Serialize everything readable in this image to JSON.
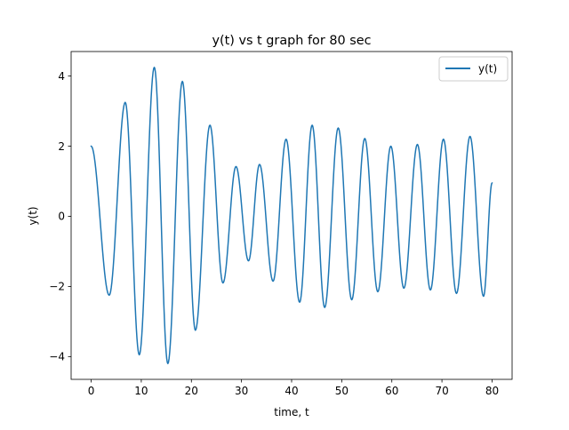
{
  "chart_data": {
    "type": "line",
    "title": "y(t) vs t graph for 80 sec",
    "xlabel": "time, t",
    "ylabel": "y(t)",
    "xlim": [
      -4,
      84
    ],
    "ylim": [
      -4.65,
      4.7
    ],
    "xticks": [
      0,
      10,
      20,
      30,
      40,
      50,
      60,
      70,
      80
    ],
    "yticks": [
      -4,
      -2,
      0,
      2,
      4
    ],
    "legend": {
      "position": "top-right",
      "entries": [
        "y(t)"
      ]
    },
    "grid": false,
    "series": [
      {
        "name": "y(t)",
        "color": "#1f77b4",
        "x": [
          0,
          3.6,
          6.8,
          9.6,
          12.6,
          15.3,
          18.2,
          20.8,
          23.7,
          26.3,
          28.9,
          31.4,
          33.6,
          36.3,
          38.9,
          41.6,
          44.1,
          46.6,
          49.3,
          52.0,
          54.6,
          57.2,
          59.8,
          62.4,
          65.1,
          67.7,
          70.3,
          72.9,
          75.6,
          78.3,
          80
        ],
        "y": [
          2.0,
          -2.25,
          3.25,
          -3.95,
          4.25,
          -4.2,
          3.85,
          -3.25,
          2.6,
          -1.9,
          1.42,
          -1.27,
          1.48,
          -1.85,
          2.2,
          -2.45,
          2.6,
          -2.6,
          2.52,
          -2.38,
          2.22,
          -2.15,
          2.0,
          -2.05,
          2.05,
          -2.1,
          2.2,
          -2.2,
          2.28,
          -2.28,
          0.95
        ]
      }
    ]
  }
}
